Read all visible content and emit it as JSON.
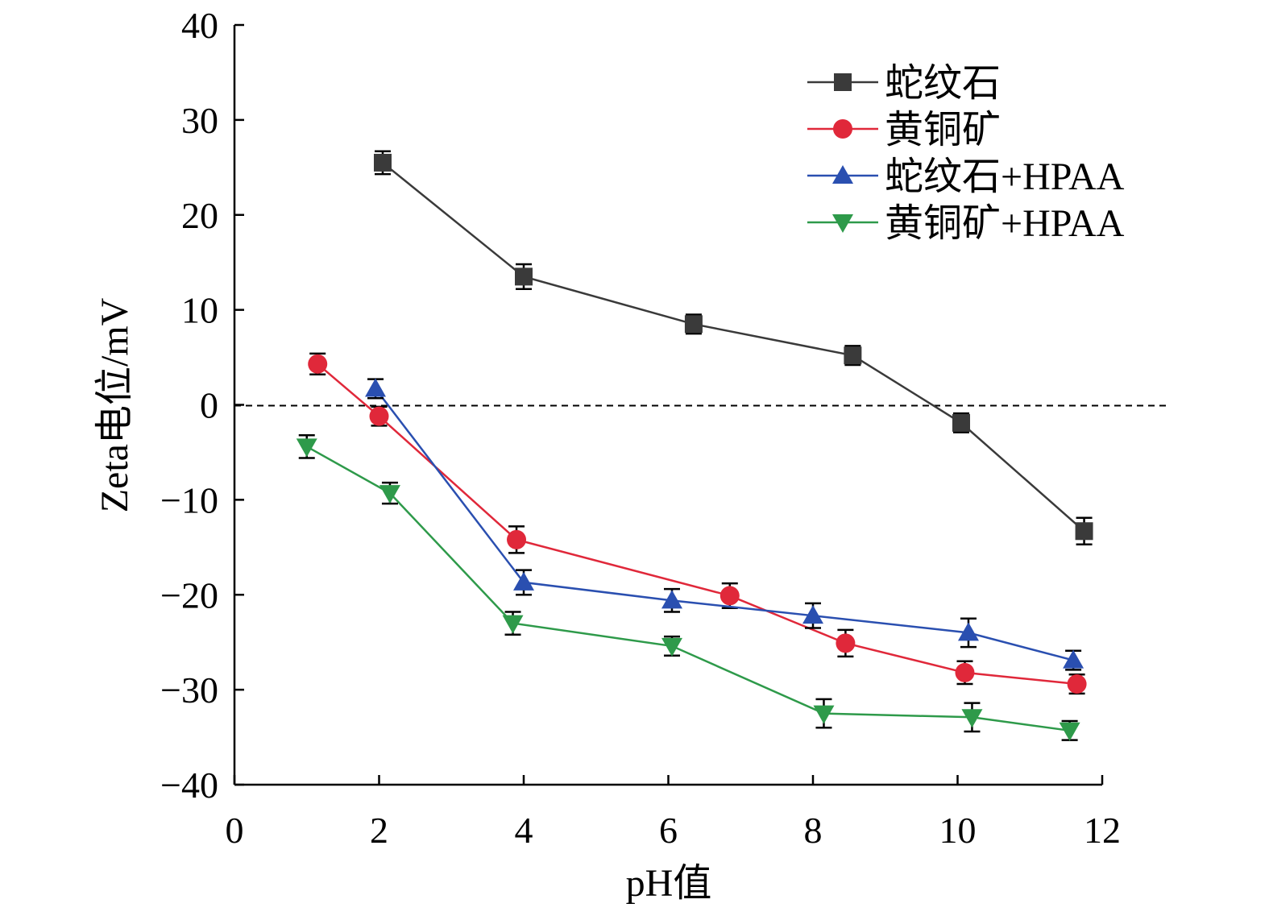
{
  "chart_data": {
    "type": "line",
    "xlabel": "pH值",
    "ylabel": "Zeta电位/mV",
    "xlim": [
      0,
      12
    ],
    "ylim": [
      -40,
      40
    ],
    "xticks": [
      "0",
      "2",
      "4",
      "6",
      "8",
      "10",
      "12"
    ],
    "yticks": [
      "40",
      "30",
      "20",
      "10",
      "0",
      "−10",
      "−20",
      "−30",
      "−40"
    ],
    "reference_line": {
      "y": 0,
      "style": "dashed"
    },
    "legend_position": "top-right",
    "grid": false,
    "series": [
      {
        "name": "蛇纹石",
        "color": "#3a3a3a",
        "marker": "square",
        "x": [
          2.05,
          4.0,
          6.35,
          8.55,
          10.05,
          11.75
        ],
        "y": [
          25.5,
          13.5,
          8.5,
          5.2,
          -1.9,
          -13.3
        ],
        "err": [
          1.2,
          1.3,
          1.0,
          1.0,
          1.0,
          1.4
        ]
      },
      {
        "name": "黄铜矿",
        "color": "#e0283a",
        "marker": "circle",
        "x": [
          1.15,
          2.0,
          3.9,
          6.85,
          8.45,
          10.1,
          11.65
        ],
        "y": [
          4.3,
          -1.2,
          -14.2,
          -20.1,
          -25.1,
          -28.2,
          -29.4
        ],
        "err": [
          1.1,
          1.0,
          1.4,
          1.3,
          1.4,
          1.2,
          1.0
        ]
      },
      {
        "name": "蛇纹石+HPAA",
        "color": "#2a4fb0",
        "marker": "triangle-up",
        "x": [
          1.95,
          4.0,
          6.05,
          8.0,
          10.15,
          11.6
        ],
        "y": [
          1.7,
          -18.7,
          -20.6,
          -22.2,
          -24.0,
          -26.9
        ],
        "err": [
          1.0,
          1.3,
          1.2,
          1.3,
          1.5,
          1.0
        ]
      },
      {
        "name": "黄铜矿+HPAA",
        "color": "#2e9a4a",
        "marker": "triangle-down",
        "x": [
          1.0,
          2.15,
          3.85,
          6.05,
          8.15,
          10.2,
          11.55
        ],
        "y": [
          -4.4,
          -9.3,
          -23.0,
          -25.4,
          -32.5,
          -32.9,
          -34.3
        ],
        "err": [
          1.2,
          1.1,
          1.2,
          1.0,
          1.5,
          1.5,
          1.0
        ]
      }
    ]
  }
}
